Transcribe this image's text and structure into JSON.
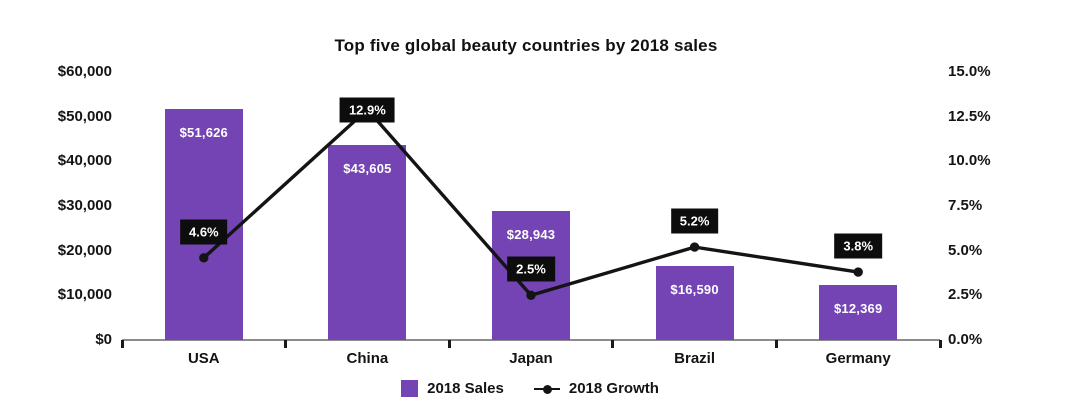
{
  "chart_data": {
    "type": "bar",
    "subtype": "bar-line-combo",
    "title": "Top five global beauty countries by 2018 sales",
    "categories": [
      "USA",
      "China",
      "Japan",
      "Brazil",
      "Germany"
    ],
    "series": [
      {
        "name": "2018 Sales",
        "type": "bar",
        "axis": "left",
        "values": [
          51626,
          43605,
          28943,
          16590,
          12369
        ],
        "labels": [
          "$51,626",
          "$43,605",
          "$28,943",
          "$16,590",
          "$12,369"
        ],
        "color": "#7444b4"
      },
      {
        "name": "2018 Growth",
        "type": "line",
        "axis": "right",
        "values": [
          4.6,
          12.9,
          2.5,
          5.2,
          3.8
        ],
        "labels": [
          "4.6%",
          "12.9%",
          "2.5%",
          "5.2%",
          "3.8%"
        ],
        "color": "#141414"
      }
    ],
    "left_axis": {
      "min": 0,
      "max": 60000,
      "tick_labels": [
        "$60,000",
        "$50,000",
        "$40,000",
        "$30,000",
        "$20,000",
        "$10,000",
        "$0"
      ]
    },
    "right_axis": {
      "min": 0,
      "max": 15,
      "tick_labels": [
        "15.0%",
        "12.5%",
        "10.0%",
        "7.5%",
        "5.0%",
        "2.5%",
        "0.0%"
      ]
    },
    "grid": false,
    "legend_position": "bottom",
    "legend": [
      {
        "label": "2018 Sales",
        "marker": "square",
        "color": "#7444b4"
      },
      {
        "label": "2018 Growth",
        "marker": "line-dot",
        "color": "#141414"
      }
    ]
  },
  "colors": {
    "bar": "#7444b4",
    "line": "#141414",
    "value_box_bg": "#0d0d0d",
    "value_box_text": "#ffffff",
    "bar_label_text": "#ffffff",
    "axis_line": "#8c8c8c",
    "tick": "#1a1a1a",
    "text": "#141414",
    "background": "#ffffff"
  }
}
